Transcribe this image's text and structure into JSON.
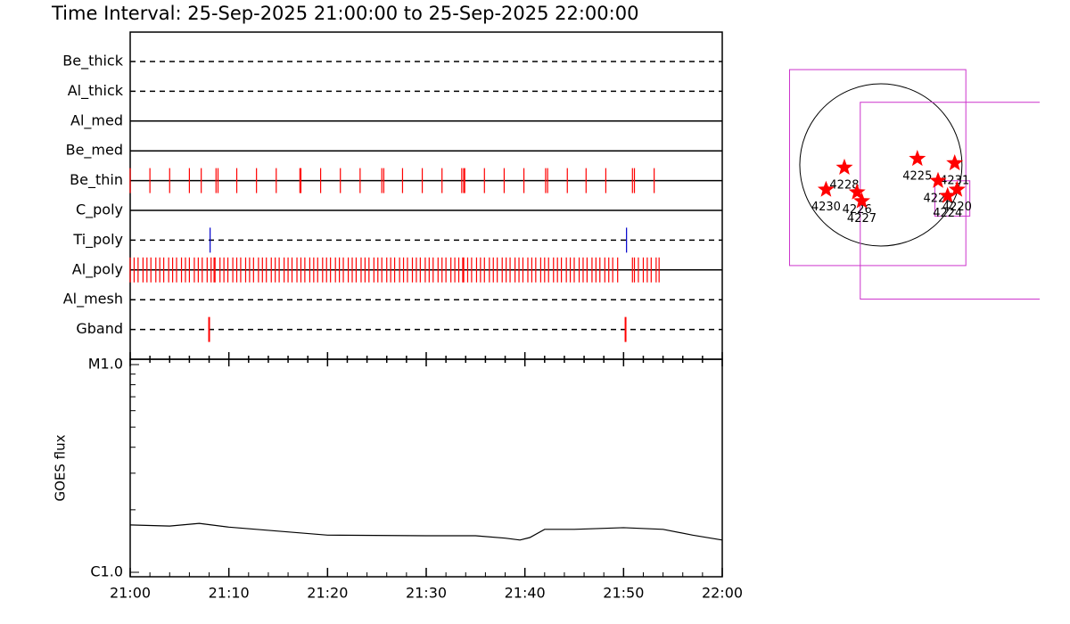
{
  "chart_data": [
    {
      "type": "timeline",
      "title": "Time Interval: 25-Sep-2025 21:00:00 to 25-Sep-2025 22:00:00",
      "xlim": [
        0,
        60
      ],
      "rows": [
        {
          "label": "Be_thick",
          "style": "dashed",
          "times": []
        },
        {
          "label": "Al_thick",
          "style": "dashed",
          "times": []
        },
        {
          "label": "Al_med",
          "style": "solid",
          "times": []
        },
        {
          "label": "Be_med",
          "style": "solid",
          "times": []
        },
        {
          "label": "Be_thin",
          "style": "solid",
          "color": "#ff0000",
          "times": [
            0,
            2.0,
            4.0,
            6.0,
            7.2,
            8.7,
            8.9,
            10.8,
            12.8,
            14.8,
            17.2,
            17.3,
            19.3,
            21.3,
            23.3,
            25.5,
            25.7,
            27.6,
            29.6,
            31.6,
            33.6,
            33.8,
            33.9,
            35.9,
            37.9,
            39.9,
            42.1,
            42.3,
            44.3,
            46.2,
            48.2,
            50.9,
            51.1,
            53.1
          ]
        },
        {
          "label": "C_poly",
          "style": "solid",
          "times": []
        },
        {
          "label": "Ti_poly",
          "style": "dashed",
          "color": "#0000cc",
          "times": [
            8.1,
            50.3
          ]
        },
        {
          "label": "Al_poly",
          "style": "solid",
          "color": "#ff0000",
          "times": [
            0.0,
            0.4,
            0.8,
            1.3,
            1.7,
            2.1,
            2.6,
            3.0,
            3.4,
            3.9,
            4.3,
            4.7,
            5.2,
            5.6,
            6.0,
            6.5,
            6.9,
            7.3,
            7.8,
            8.2,
            8.5,
            8.6,
            9.1,
            9.5,
            9.9,
            10.4,
            10.8,
            11.2,
            11.7,
            12.1,
            12.5,
            13.0,
            13.4,
            13.8,
            14.3,
            14.7,
            15.1,
            15.6,
            16.0,
            16.4,
            16.9,
            17.3,
            17.7,
            18.2,
            18.6,
            19.0,
            19.5,
            19.9,
            20.3,
            20.8,
            21.2,
            21.6,
            22.1,
            22.5,
            22.9,
            23.4,
            23.8,
            24.2,
            24.7,
            25.1,
            25.5,
            26.0,
            26.4,
            26.8,
            27.3,
            27.7,
            28.1,
            28.6,
            29.0,
            29.4,
            29.9,
            30.3,
            30.7,
            31.2,
            31.6,
            32.0,
            32.5,
            32.9,
            33.3,
            33.7,
            33.8,
            34.2,
            34.6,
            35.1,
            35.5,
            35.9,
            36.4,
            36.8,
            37.2,
            37.7,
            38.1,
            38.5,
            39.0,
            39.4,
            39.8,
            40.3,
            40.7,
            41.1,
            41.6,
            42.0,
            42.4,
            42.9,
            43.3,
            43.7,
            44.2,
            44.6,
            45.0,
            45.5,
            45.9,
            46.3,
            46.8,
            47.2,
            47.6,
            48.1,
            48.5,
            48.9,
            49.4,
            50.9,
            51.1,
            51.5,
            52.0,
            52.4,
            52.8,
            53.3,
            53.6
          ]
        },
        {
          "label": "Al_mesh",
          "style": "dashed",
          "times": []
        },
        {
          "label": "Gband",
          "style": "dashed",
          "color": "#ff0000",
          "times": [
            8.0,
            50.2
          ]
        }
      ]
    },
    {
      "type": "line",
      "ylabel": "GOES flux",
      "color": "#000000",
      "log_scale": true,
      "x": [
        0,
        4,
        7,
        10,
        20,
        30,
        35,
        38,
        39.5,
        40.5,
        42,
        45,
        50,
        54,
        57,
        60
      ],
      "values": [
        1.69e-06,
        1.67e-06,
        1.72e-06,
        1.65e-06,
        1.51e-06,
        1.5e-06,
        1.5e-06,
        1.46e-06,
        1.43e-06,
        1.47e-06,
        1.61e-06,
        1.61e-06,
        1.64e-06,
        1.61e-06,
        1.51e-06,
        1.43e-06
      ],
      "xlim": [
        0,
        60
      ],
      "xticks": [
        {
          "value": 0,
          "label": "21:00"
        },
        {
          "value": 10,
          "label": "21:10"
        },
        {
          "value": 20,
          "label": "21:20"
        },
        {
          "value": 30,
          "label": "21:30"
        },
        {
          "value": 40,
          "label": "21:40"
        },
        {
          "value": 50,
          "label": "21:50"
        },
        {
          "value": 60,
          "label": "22:00"
        }
      ],
      "xminor_ticks": [
        2,
        4,
        6,
        8,
        12,
        14,
        16,
        18,
        22,
        24,
        26,
        28,
        32,
        34,
        36,
        38,
        42,
        44,
        46,
        48,
        52,
        54,
        56,
        58
      ],
      "ylim": [
        1e-06,
        1e-05
      ],
      "yticks": [
        {
          "value": 1e-06,
          "label": "C1.0"
        },
        {
          "value": 1e-05,
          "label": "M1.0"
        }
      ],
      "yminor_ticks": [
        2e-06,
        3e-06,
        4e-06,
        5e-06,
        6e-06,
        7e-06,
        8e-06,
        9e-06
      ]
    },
    {
      "type": "scatter",
      "color": "#ff0000",
      "box_color": "#cc33cc",
      "solar_radius": 960,
      "xlim": [
        -1350,
        1880
      ],
      "ylim": [
        -1500,
        1500
      ],
      "labels": [
        "4230",
        "4228",
        "4226",
        "4227",
        "4225",
        "4231",
        "4222",
        "4224",
        "4220"
      ],
      "x": [
        -649,
        -432,
        -282,
        -226,
        432,
        874,
        677,
        790,
        902
      ],
      "y": [
        -263,
        -28,
        -291,
        -385,
        66,
        19,
        -169,
        -329,
        -263
      ],
      "fov_boxes": [
        [
          -1081,
          -1072,
          1006,
          1015
        ],
        [
          -244,
          -1429,
          2000,
          667
        ],
        [
          639,
          -545,
          1053,
          -169
        ]
      ]
    }
  ]
}
